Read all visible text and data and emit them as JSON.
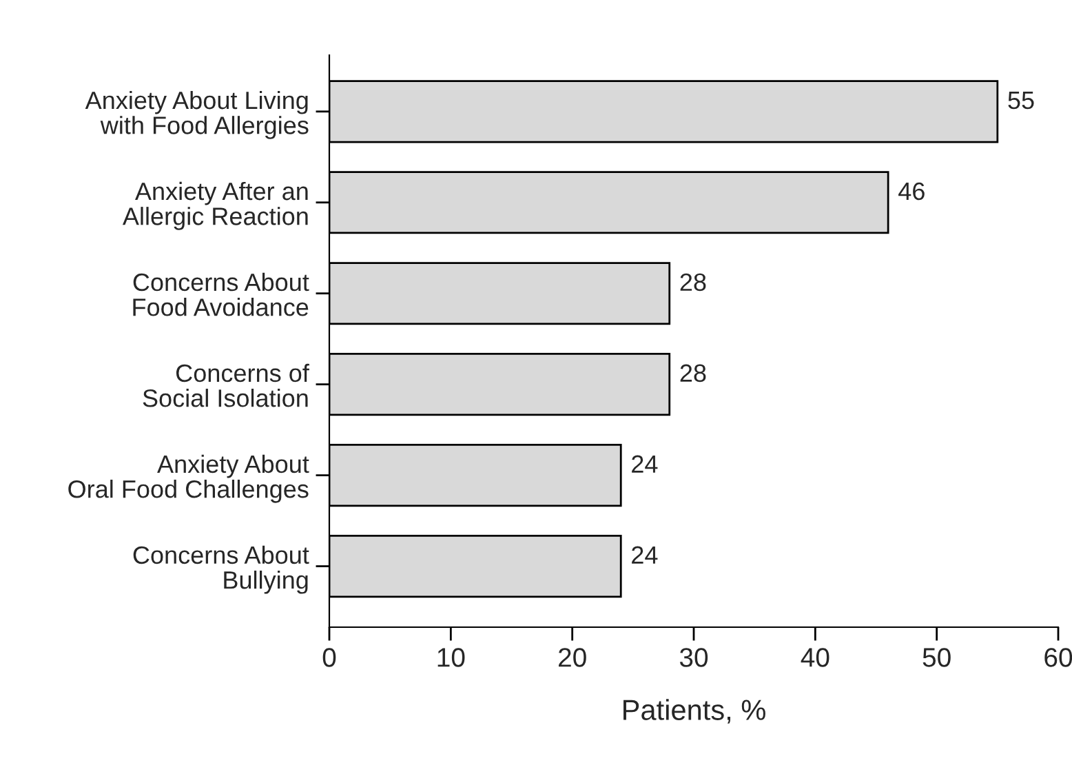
{
  "chart_data": {
    "type": "bar",
    "orientation": "horizontal",
    "categories": [
      "Anxiety About Living\nwith Food Allergies",
      "Anxiety After an\nAllergic Reaction",
      "Concerns About\nFood Avoidance",
      "Concerns of\nSocial Isolation",
      "Anxiety About\nOral Food Challenges",
      "Concerns About\nBullying"
    ],
    "values": [
      55,
      46,
      28,
      28,
      24,
      24
    ],
    "color": "#d9d9d9",
    "xlim": [
      0,
      60
    ],
    "xticks": [
      0,
      10,
      20,
      30,
      40,
      50,
      60
    ],
    "xlabel": "Patients, %",
    "data_labels": true,
    "grid": false
  }
}
